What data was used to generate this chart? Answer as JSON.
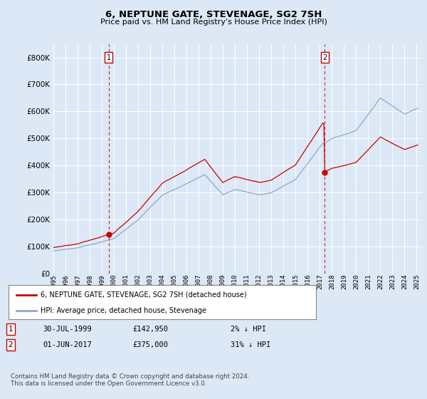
{
  "title": "6, NEPTUNE GATE, STEVENAGE, SG2 7SH",
  "subtitle": "Price paid vs. HM Land Registry's House Price Index (HPI)",
  "background_color": "#dce8f5",
  "plot_bg_color": "#dce8f5",
  "yticks": [
    0,
    100000,
    200000,
    300000,
    400000,
    500000,
    600000,
    700000,
    800000
  ],
  "ytick_labels": [
    "£0",
    "£100K",
    "£200K",
    "£300K",
    "£400K",
    "£500K",
    "£600K",
    "£700K",
    "£800K"
  ],
  "legend_line1": "6, NEPTUNE GATE, STEVENAGE, SG2 7SH (detached house)",
  "legend_line2": "HPI: Average price, detached house, Stevenage",
  "annotation1_date": "30-JUL-1999",
  "annotation1_price": "£142,950",
  "annotation1_hpi": "2% ↓ HPI",
  "annotation2_date": "01-JUN-2017",
  "annotation2_price": "£375,000",
  "annotation2_hpi": "31% ↓ HPI",
  "footer": "Contains HM Land Registry data © Crown copyright and database right 2024.\nThis data is licensed under the Open Government Licence v3.0.",
  "line_color_property": "#cc0000",
  "line_color_hpi": "#88aacc",
  "purchase1_year": 1999.58,
  "purchase1_price": 142950,
  "purchase2_year": 2017.42,
  "purchase2_price": 375000,
  "xmin": 1995,
  "xmax": 2025.5,
  "ylim_max": 850000
}
